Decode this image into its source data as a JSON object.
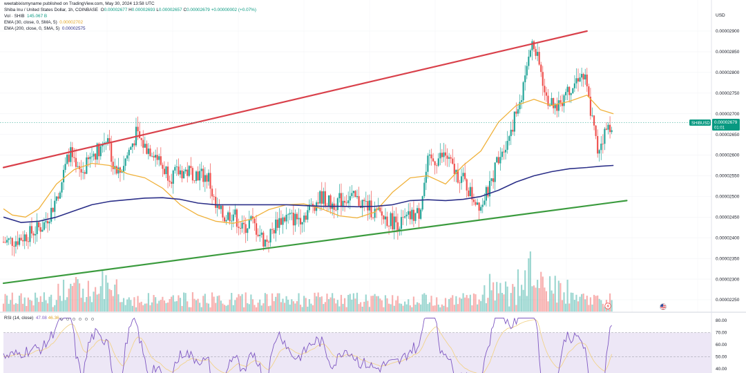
{
  "header": {
    "publisher": "weetabixismyname published on TradingView.com, May 30, 2024 13:58 UTC"
  },
  "legend": {
    "symbol": "Shiba Inu / United States Dollar, 1h, COINBASE",
    "ohlc": {
      "O_label": "O",
      "O": "0.00002677",
      "H_label": "H",
      "H": "0.00002693",
      "L_label": "L",
      "L": "0.00002657",
      "C_label": "C",
      "C": "0.00002679",
      "change": "+0.00000002 (+0.07%)"
    },
    "vol": {
      "label": "Vol · SHIB",
      "value": "145.067 B"
    },
    "ema30": {
      "label": "EMA (30, close, 0, SMA, 5)",
      "value": "0.00002702"
    },
    "ema200": {
      "label": "EMA (200, close, 0, SMA, 5)",
      "value": "0.00002575"
    },
    "rsi": {
      "label": "RSI (14, close)",
      "value": "47.08",
      "value2": "46.36"
    }
  },
  "price_axis": {
    "currency": "USD",
    "ticks": [
      "0.00002900",
      "0.00002850",
      "0.00002800",
      "0.00002750",
      "0.00002700",
      "0.00002650",
      "0.00002600",
      "0.00002550",
      "0.00002500",
      "0.00002450",
      "0.00002400",
      "0.00002350",
      "0.00002300",
      "0.00002250"
    ],
    "symbol_tag": "SHIBUSD",
    "last_price": "0.00002679",
    "countdown": "01:01"
  },
  "rsi_axis": {
    "ticks": [
      "80.00",
      "70.00",
      "60.00",
      "50.00",
      "40.00"
    ]
  },
  "colors": {
    "up": "#26a69a",
    "down": "#ef5350",
    "ema30": "#f0b13a",
    "ema200": "#2b2f88",
    "resistance": "#d9414b",
    "support": "#3b9b3e",
    "rsi_line": "#7e57c2",
    "rsi_band": "#ede7f6",
    "tag_bg": "#089981"
  },
  "chart_data": {
    "type": "candlestick",
    "timeframe": "1h",
    "ylim": [
      2.22e-05,
      2.97e-05
    ],
    "series": [
      {
        "name": "EMA (30, close, 0, SMA, 5)",
        "points": [
          [
            0,
            2.47e-05
          ],
          [
            10,
            2.455e-05
          ],
          [
            25,
            2.45e-05
          ],
          [
            40,
            2.47e-05
          ],
          [
            60,
            2.53e-05
          ],
          [
            80,
            2.565e-05
          ],
          [
            100,
            2.58e-05
          ],
          [
            120,
            2.575e-05
          ],
          [
            140,
            2.555e-05
          ],
          [
            160,
            2.545e-05
          ],
          [
            180,
            2.52e-05
          ],
          [
            200,
            2.48e-05
          ],
          [
            220,
            2.455e-05
          ],
          [
            240,
            2.44e-05
          ],
          [
            260,
            2.435e-05
          ],
          [
            280,
            2.445e-05
          ],
          [
            300,
            2.468e-05
          ],
          [
            320,
            2.48e-05
          ],
          [
            340,
            2.482e-05
          ],
          [
            360,
            2.47e-05
          ],
          [
            380,
            2.453e-05
          ],
          [
            400,
            2.448e-05
          ],
          [
            420,
            2.462e-05
          ],
          [
            440,
            2.51e-05
          ],
          [
            460,
            2.545e-05
          ],
          [
            480,
            2.55e-05
          ],
          [
            500,
            2.53e-05
          ],
          [
            520,
            2.575e-05
          ],
          [
            540,
            2.61e-05
          ],
          [
            560,
            2.68e-05
          ],
          [
            580,
            2.72e-05
          ],
          [
            600,
            2.735e-05
          ],
          [
            620,
            2.72e-05
          ],
          [
            640,
            2.73e-05
          ],
          [
            660,
            2.745e-05
          ],
          [
            675,
            2.71e-05
          ],
          [
            690,
            2.7e-05
          ]
        ]
      },
      {
        "name": "EMA (200, close, 0, SMA, 5)",
        "points": [
          [
            0,
            2.45e-05
          ],
          [
            20,
            2.437e-05
          ],
          [
            40,
            2.44e-05
          ],
          [
            60,
            2.45e-05
          ],
          [
            80,
            2.465e-05
          ],
          [
            100,
            2.48e-05
          ],
          [
            120,
            2.488e-05
          ],
          [
            140,
            2.492e-05
          ],
          [
            160,
            2.496e-05
          ],
          [
            180,
            2.497e-05
          ],
          [
            200,
            2.493e-05
          ],
          [
            220,
            2.484e-05
          ],
          [
            240,
            2.48e-05
          ],
          [
            260,
            2.48e-05
          ],
          [
            280,
            2.48e-05
          ],
          [
            300,
            2.48e-05
          ],
          [
            320,
            2.48e-05
          ],
          [
            340,
            2.478e-05
          ],
          [
            360,
            2.476e-05
          ],
          [
            380,
            2.476e-05
          ],
          [
            400,
            2.475e-05
          ],
          [
            420,
            2.476e-05
          ],
          [
            440,
            2.48e-05
          ],
          [
            460,
            2.49e-05
          ],
          [
            480,
            2.492e-05
          ],
          [
            500,
            2.49e-05
          ],
          [
            520,
            2.493e-05
          ],
          [
            540,
            2.5e-05
          ],
          [
            560,
            2.515e-05
          ],
          [
            580,
            2.535e-05
          ],
          [
            600,
            2.55e-05
          ],
          [
            620,
            2.56e-05
          ],
          [
            640,
            2.567e-05
          ],
          [
            660,
            2.57e-05
          ],
          [
            675,
            2.573e-05
          ],
          [
            690,
            2.575e-05
          ]
        ]
      }
    ],
    "trendlines": [
      {
        "name": "resistance",
        "from": [
          0,
          2.57e-05
        ],
        "to": [
          660,
          2.9e-05
        ]
      },
      {
        "name": "support",
        "from": [
          0,
          2.29e-05
        ],
        "to": [
          705,
          2.49e-05
        ]
      }
    ],
    "rsi": {
      "ylim": [
        37,
        83
      ],
      "levels": [
        70,
        50
      ],
      "last": 47.08
    }
  }
}
